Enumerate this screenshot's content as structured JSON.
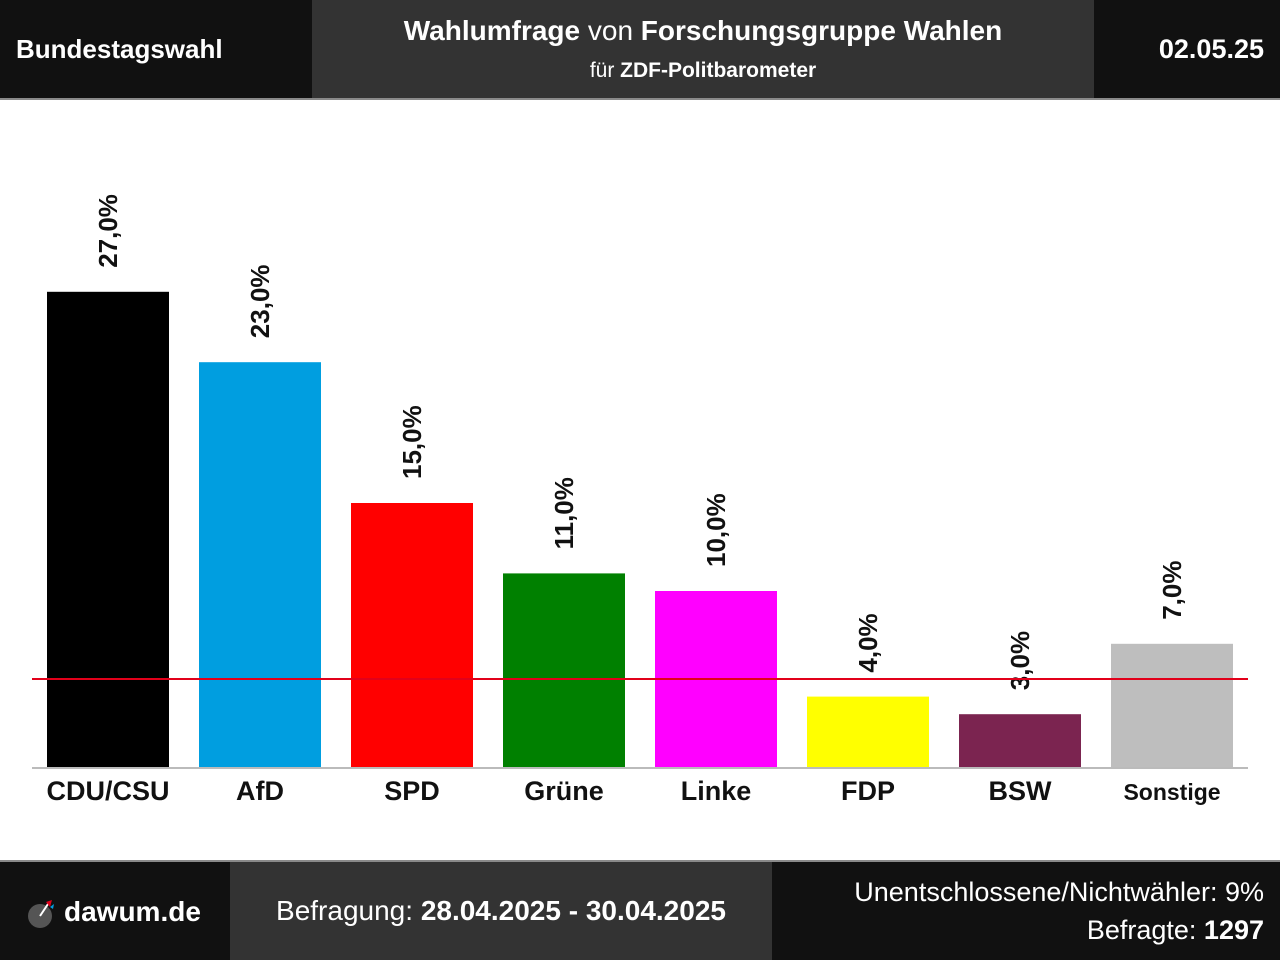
{
  "header": {
    "left": "Bundestagswahl",
    "title_pre": "Wahlumfrage",
    "title_mid": " von ",
    "title_institute": "Forschungsgruppe Wahlen",
    "subtitle_pre": "für ",
    "subtitle_client": "ZDF-Politbarometer",
    "date": "02.05.25"
  },
  "chart_data": {
    "type": "bar",
    "categories": [
      "CDU/CSU",
      "AfD",
      "SPD",
      "Grüne",
      "Linke",
      "FDP",
      "BSW",
      "Sonstige"
    ],
    "values": [
      27.0,
      23.0,
      15.0,
      11.0,
      10.0,
      4.0,
      3.0,
      7.0
    ],
    "value_labels": [
      "27,0%",
      "23,0%",
      "15,0%",
      "11,0%",
      "10,0%",
      "4,0%",
      "3,0%",
      "7,0%"
    ],
    "colors": [
      "#000000",
      "#009ee0",
      "#ff0000",
      "#008000",
      "#ff00ff",
      "#ffff00",
      "#7b2450",
      "#bebebe"
    ],
    "threshold": 5.0,
    "threshold_color": "#e2001a",
    "ylim": [
      0,
      30
    ],
    "title": "",
    "xlabel": "",
    "ylabel": "",
    "grid": false,
    "legend": "none"
  },
  "footer": {
    "brand": "dawum.de",
    "period_label": "Befragung: ",
    "period": "28.04.2025 - 30.04.2025",
    "undecided": "Unentschlossene/Nichtwähler: 9%",
    "respondents_label": "Befragte: ",
    "respondents": "1297"
  }
}
